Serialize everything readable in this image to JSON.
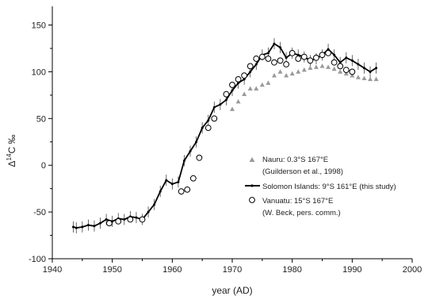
{
  "chart_data": {
    "type": "scatter",
    "xlabel": "year (AD)",
    "ylabel_main": "Δ",
    "ylabel_sup": "14",
    "ylabel_rest": "C ‰",
    "xlim": [
      1940,
      2000
    ],
    "ylim": [
      -100,
      170
    ],
    "xticks": [
      1940,
      1950,
      1960,
      1970,
      1980,
      1990,
      2000
    ],
    "yticks": [
      -100,
      -50,
      0,
      50,
      100,
      150
    ],
    "grid": false,
    "legend_position": "right-center",
    "series": [
      {
        "name_line1": "Nauru: 0.3°S 167°E",
        "name_line2": "(Guilderson et al., 1998)",
        "marker": "triangle",
        "color": "#9a9a9a",
        "x": [
          1970,
          1971,
          1972,
          1973,
          1974,
          1975,
          1976,
          1977,
          1978,
          1979,
          1980,
          1981,
          1982,
          1983,
          1984,
          1985,
          1986,
          1987,
          1988,
          1989,
          1990,
          1991,
          1992,
          1993,
          1994
        ],
        "y": [
          60,
          68,
          76,
          82,
          82,
          86,
          88,
          96,
          100,
          96,
          98,
          100,
          102,
          104,
          105,
          106,
          105,
          103,
          100,
          98,
          96,
          94,
          93,
          92,
          92
        ]
      },
      {
        "name_line1": "Solomon Islands: 9°S 161°E (this study)",
        "marker": "line-dot",
        "color": "#000000",
        "x": [
          1943.5,
          1944,
          1945,
          1946,
          1947,
          1948,
          1949,
          1950,
          1951,
          1952,
          1953,
          1954,
          1955,
          1956,
          1957,
          1958,
          1959,
          1960,
          1961,
          1962,
          1963,
          1964,
          1965,
          1966,
          1967,
          1968,
          1969,
          1970,
          1971,
          1972,
          1973,
          1974,
          1975,
          1976,
          1977,
          1978,
          1979,
          1980,
          1981,
          1982,
          1983,
          1984,
          1985,
          1986,
          1987,
          1988,
          1989,
          1990,
          1991,
          1992,
          1993,
          1994
        ],
        "y": [
          -66,
          -67,
          -66,
          -64,
          -65,
          -62,
          -58,
          -60,
          -57,
          -58,
          -55,
          -56,
          -58,
          -50,
          -42,
          -28,
          -16,
          -20,
          -18,
          5,
          15,
          25,
          40,
          48,
          62,
          65,
          70,
          80,
          88,
          92,
          100,
          108,
          118,
          120,
          130,
          126,
          115,
          120,
          118,
          116,
          112,
          114,
          118,
          124,
          118,
          110,
          115,
          112,
          108,
          104,
          100,
          104
        ]
      },
      {
        "name_line1": "Vanuatu: 15°S 167°E",
        "name_line2": "(W. Beck, pers. comm.)",
        "marker": "open-circle",
        "color": "#000000",
        "x": [
          1949.5,
          1951,
          1953,
          1955,
          1961.5,
          1962.5,
          1963.5,
          1964.5,
          1966,
          1967,
          1969,
          1970,
          1971,
          1972,
          1973,
          1974,
          1975,
          1976,
          1977,
          1978,
          1979,
          1980,
          1981,
          1982,
          1983,
          1984,
          1985,
          1986,
          1987,
          1988,
          1989,
          1990
        ],
        "y": [
          -62,
          -60,
          -58,
          -58,
          -28,
          -26,
          -14,
          8,
          40,
          50,
          76,
          86,
          92,
          96,
          106,
          114,
          116,
          114,
          110,
          112,
          108,
          120,
          114,
          116,
          112,
          115,
          118,
          120,
          110,
          106,
          102,
          100
        ]
      }
    ]
  }
}
